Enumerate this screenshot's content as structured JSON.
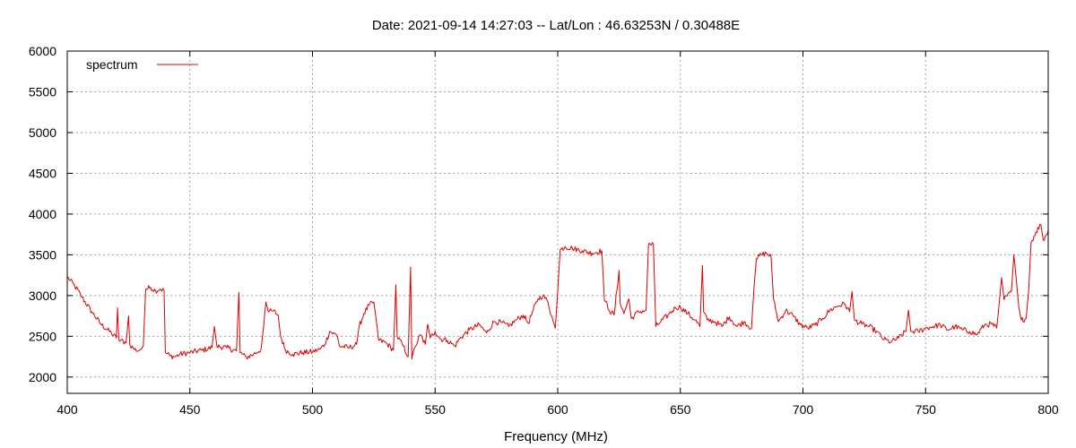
{
  "chart_data": {
    "type": "line",
    "title": "Date: 2021-09-14 14:27:03  --  Lat/Lon : 46.63253N / 0.30488E",
    "xlabel": "Frequency (MHz)",
    "ylabel": "",
    "xlim": [
      400,
      800
    ],
    "ylim": [
      1800,
      6000
    ],
    "xticks": [
      "400",
      "450",
      "500",
      "550",
      "600",
      "650",
      "700",
      "750",
      "800"
    ],
    "yticks": [
      "2000",
      "2500",
      "3000",
      "3500",
      "4000",
      "4500",
      "5000",
      "5500",
      "6000"
    ],
    "grid": true,
    "legend_position": "top-left",
    "series": [
      {
        "name": "spectrum",
        "color": "#dd0000",
        "points": [
          [
            400,
            3230
          ],
          [
            403,
            3120
          ],
          [
            406,
            2980
          ],
          [
            410,
            2800
          ],
          [
            414,
            2640
          ],
          [
            418,
            2540
          ],
          [
            420,
            2480
          ],
          [
            420.5,
            2850
          ],
          [
            421,
            2460
          ],
          [
            424,
            2420
          ],
          [
            425,
            2750
          ],
          [
            425.5,
            2400
          ],
          [
            427,
            2350
          ],
          [
            429,
            2320
          ],
          [
            430,
            2340
          ],
          [
            431,
            2380
          ],
          [
            432,
            3080
          ],
          [
            434,
            3100
          ],
          [
            436,
            3060
          ],
          [
            438,
            3080
          ],
          [
            439.5,
            3060
          ],
          [
            440,
            2300
          ],
          [
            442,
            2260
          ],
          [
            444,
            2250
          ],
          [
            446,
            2280
          ],
          [
            450,
            2300
          ],
          [
            455,
            2330
          ],
          [
            459,
            2360
          ],
          [
            460,
            2620
          ],
          [
            461,
            2380
          ],
          [
            465,
            2360
          ],
          [
            469,
            2320
          ],
          [
            470,
            3040
          ],
          [
            470.5,
            2300
          ],
          [
            473,
            2240
          ],
          [
            476,
            2280
          ],
          [
            479,
            2340
          ],
          [
            480,
            2600
          ],
          [
            481,
            2920
          ],
          [
            482,
            2800
          ],
          [
            484,
            2810
          ],
          [
            486,
            2760
          ],
          [
            487,
            2500
          ],
          [
            489,
            2330
          ],
          [
            492,
            2280
          ],
          [
            496,
            2300
          ],
          [
            500,
            2310
          ],
          [
            503,
            2340
          ],
          [
            505,
            2400
          ],
          [
            507,
            2560
          ],
          [
            510,
            2510
          ],
          [
            511,
            2380
          ],
          [
            515,
            2360
          ],
          [
            518,
            2400
          ],
          [
            519,
            2620
          ],
          [
            521,
            2780
          ],
          [
            523,
            2880
          ],
          [
            525,
            2920
          ],
          [
            526,
            2700
          ],
          [
            527,
            2450
          ],
          [
            530,
            2420
          ],
          [
            533,
            2330
          ],
          [
            534,
            3130
          ],
          [
            534.5,
            2500
          ],
          [
            537,
            2380
          ],
          [
            539,
            2250
          ],
          [
            540,
            3350
          ],
          [
            540.5,
            2220
          ],
          [
            542,
            2380
          ],
          [
            544,
            2520
          ],
          [
            546,
            2400
          ],
          [
            547,
            2650
          ],
          [
            548,
            2480
          ],
          [
            550,
            2560
          ],
          [
            552,
            2470
          ],
          [
            555,
            2450
          ],
          [
            558,
            2380
          ],
          [
            560,
            2470
          ],
          [
            564,
            2580
          ],
          [
            568,
            2640
          ],
          [
            571,
            2540
          ],
          [
            574,
            2680
          ],
          [
            577,
            2670
          ],
          [
            580,
            2620
          ],
          [
            583,
            2700
          ],
          [
            586,
            2760
          ],
          [
            588,
            2660
          ],
          [
            590,
            2820
          ],
          [
            592,
            2960
          ],
          [
            594,
            3000
          ],
          [
            596,
            2920
          ],
          [
            598,
            2700
          ],
          [
            599,
            2600
          ],
          [
            600,
            3050
          ],
          [
            601,
            3560
          ],
          [
            603,
            3600
          ],
          [
            606,
            3580
          ],
          [
            610,
            3550
          ],
          [
            614,
            3520
          ],
          [
            618,
            3550
          ],
          [
            619,
            2950
          ],
          [
            621,
            2820
          ],
          [
            623,
            2760
          ],
          [
            625,
            3310
          ],
          [
            625.5,
            2900
          ],
          [
            627,
            2780
          ],
          [
            629,
            2960
          ],
          [
            630,
            2720
          ],
          [
            633,
            2800
          ],
          [
            636,
            2820
          ],
          [
            637,
            3620
          ],
          [
            639,
            3630
          ],
          [
            640,
            2620
          ],
          [
            642,
            2680
          ],
          [
            645,
            2760
          ],
          [
            648,
            2850
          ],
          [
            650,
            2860
          ],
          [
            653,
            2780
          ],
          [
            656,
            2700
          ],
          [
            658,
            2620
          ],
          [
            659,
            3370
          ],
          [
            659.5,
            2800
          ],
          [
            661,
            2700
          ],
          [
            664,
            2680
          ],
          [
            667,
            2620
          ],
          [
            670,
            2740
          ],
          [
            673,
            2620
          ],
          [
            676,
            2680
          ],
          [
            679,
            2600
          ],
          [
            680,
            3080
          ],
          [
            681,
            3450
          ],
          [
            683,
            3500
          ],
          [
            685,
            3520
          ],
          [
            687,
            3480
          ],
          [
            688,
            2950
          ],
          [
            690,
            2680
          ],
          [
            693,
            2820
          ],
          [
            696,
            2750
          ],
          [
            699,
            2640
          ],
          [
            702,
            2600
          ],
          [
            705,
            2640
          ],
          [
            708,
            2720
          ],
          [
            711,
            2820
          ],
          [
            714,
            2870
          ],
          [
            717,
            2900
          ],
          [
            719,
            2800
          ],
          [
            720,
            3050
          ],
          [
            721,
            2700
          ],
          [
            724,
            2650
          ],
          [
            727,
            2620
          ],
          [
            730,
            2560
          ],
          [
            733,
            2460
          ],
          [
            736,
            2430
          ],
          [
            739,
            2480
          ],
          [
            742,
            2560
          ],
          [
            743,
            2820
          ],
          [
            744,
            2560
          ],
          [
            747,
            2560
          ],
          [
            750,
            2600
          ],
          [
            753,
            2620
          ],
          [
            756,
            2640
          ],
          [
            759,
            2580
          ],
          [
            762,
            2620
          ],
          [
            765,
            2580
          ],
          [
            768,
            2560
          ],
          [
            771,
            2520
          ],
          [
            774,
            2640
          ],
          [
            777,
            2650
          ],
          [
            779,
            2600
          ],
          [
            780,
            2900
          ],
          [
            781,
            3220
          ],
          [
            782,
            2950
          ],
          [
            785,
            3050
          ],
          [
            786,
            3500
          ],
          [
            787,
            3200
          ],
          [
            788,
            2860
          ],
          [
            789,
            2700
          ],
          [
            791,
            2720
          ],
          [
            792,
            3050
          ],
          [
            793,
            3650
          ],
          [
            795,
            3780
          ],
          [
            797,
            3870
          ],
          [
            798,
            3680
          ],
          [
            800,
            3800
          ]
        ]
      }
    ]
  }
}
